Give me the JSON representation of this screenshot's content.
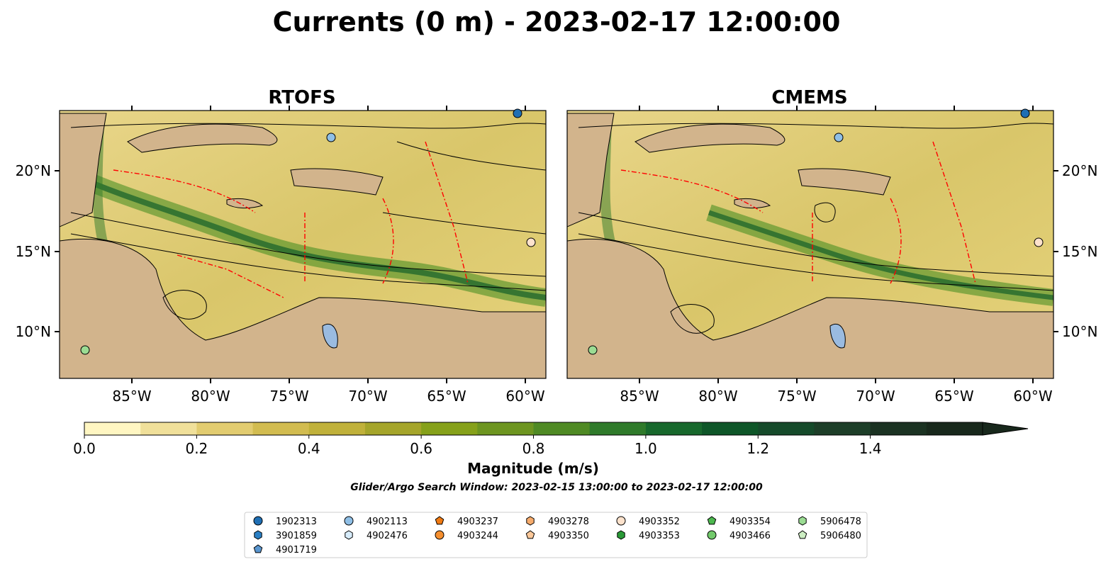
{
  "figure": {
    "title": "Currents (0 m) - 2023-02-17 12:00:00"
  },
  "panels": [
    {
      "name": "RTOFS"
    },
    {
      "name": "CMEMS"
    }
  ],
  "axes": {
    "lon_ticks": [
      "85°W",
      "80°W",
      "75°W",
      "70°W",
      "65°W",
      "60°W"
    ],
    "lat_ticks": [
      "20°N",
      "15°N",
      "10°N"
    ]
  },
  "colorbar": {
    "label": "Magnitude (m/s)",
    "ticks": [
      "0.0",
      "0.2",
      "0.4",
      "0.6",
      "0.8",
      "1.0",
      "1.2",
      "1.4"
    ],
    "colors": [
      "#fff6c2",
      "#f0e09a",
      "#e2cc70",
      "#d2bc50",
      "#c0b13a",
      "#a5a52a",
      "#86a11a",
      "#6d9520",
      "#4f8a24",
      "#2f7a2a",
      "#17682c",
      "#0e5628",
      "#154a2a",
      "#1d3e28",
      "#1b3222",
      "#18281c"
    ]
  },
  "search_window": "Glider/Argo Search Window: 2023-02-15 13:00:00 to 2023-02-17 12:00:00",
  "legend": {
    "columns": [
      [
        {
          "id": "1902313",
          "shape": "circle",
          "color": "#1f6fb4"
        },
        {
          "id": "3901859",
          "shape": "hexagon",
          "color": "#2a7fc4"
        },
        {
          "id": "4901719",
          "shape": "pentagon",
          "color": "#5a96cf"
        }
      ],
      [
        {
          "id": "4902113",
          "shape": "circle",
          "color": "#8fbfe6"
        },
        {
          "id": "4902476",
          "shape": "hexagon",
          "color": "#d7ecfb"
        }
      ],
      [
        {
          "id": "4903237",
          "shape": "pentagon",
          "color": "#f07a12"
        },
        {
          "id": "4903244",
          "shape": "circle",
          "color": "#f58f2f"
        }
      ],
      [
        {
          "id": "4903278",
          "shape": "hexagon",
          "color": "#f6ab6c"
        },
        {
          "id": "4903350",
          "shape": "pentagon",
          "color": "#fbc89a"
        }
      ],
      [
        {
          "id": "4903352",
          "shape": "circle",
          "color": "#fde2cc"
        },
        {
          "id": "4903353",
          "shape": "hexagon",
          "color": "#2a9a37"
        }
      ],
      [
        {
          "id": "4903354",
          "shape": "pentagon",
          "color": "#4db84f"
        },
        {
          "id": "4903466",
          "shape": "circle",
          "color": "#72c96b"
        }
      ],
      [
        {
          "id": "5906478",
          "shape": "hexagon",
          "color": "#9bdc93"
        },
        {
          "id": "5906480",
          "shape": "pentagon",
          "color": "#cdeec3"
        }
      ]
    ]
  },
  "colors": {
    "land": "#d2b48c",
    "lake": "#9abbe0",
    "boundary": "#ff0000"
  }
}
